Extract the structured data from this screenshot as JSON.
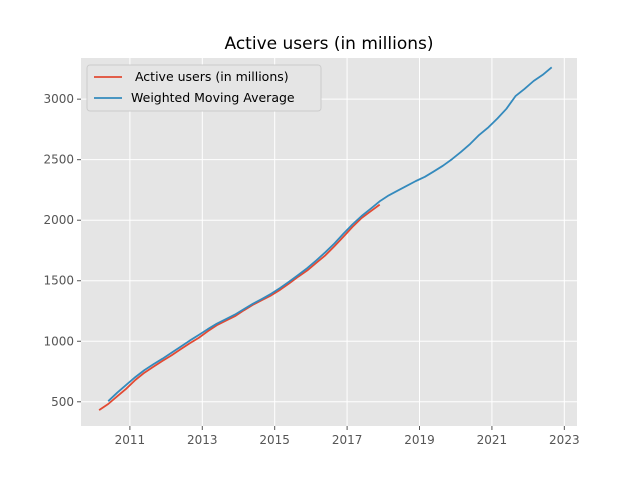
{
  "chart_data": {
    "type": "line",
    "title": "Active users (in millions)",
    "xlabel": "",
    "ylabel": "",
    "xlim": [
      2009.65,
      2023.35
    ],
    "ylim": [
      300,
      3340
    ],
    "xticks": [
      2011,
      2013,
      2015,
      2017,
      2019,
      2021,
      2023
    ],
    "yticks": [
      500,
      1000,
      1500,
      2000,
      2500,
      3000
    ],
    "grid": true,
    "legend": "upper-left",
    "series": [
      {
        "name": " Active users (in millions)",
        "color": "#E24A33",
        "x": [
          2010.15,
          2010.4,
          2010.65,
          2010.9,
          2011.15,
          2011.4,
          2011.65,
          2011.9,
          2012.15,
          2012.4,
          2012.65,
          2012.9,
          2013.15,
          2013.4,
          2013.65,
          2013.9,
          2014.15,
          2014.4,
          2014.65,
          2014.9,
          2015.15,
          2015.4,
          2015.65,
          2015.9,
          2016.15,
          2016.4,
          2016.65,
          2016.9,
          2017.15,
          2017.4,
          2017.65,
          2017.9
        ],
        "y": [
          431,
          482,
          545,
          608,
          680,
          740,
          790,
          838,
          883,
          934,
          982,
          1028,
          1082,
          1133,
          1170,
          1207,
          1256,
          1302,
          1340,
          1379,
          1425,
          1478,
          1533,
          1585,
          1648,
          1710,
          1785,
          1865,
          1945,
          2018,
          2074,
          2129
        ]
      },
      {
        "name": "Weighted Moving Average",
        "color": "#348ABD",
        "x": [
          2010.4,
          2010.65,
          2010.9,
          2011.15,
          2011.4,
          2011.65,
          2011.9,
          2012.15,
          2012.4,
          2012.65,
          2012.9,
          2013.15,
          2013.4,
          2013.65,
          2013.9,
          2014.15,
          2014.4,
          2014.65,
          2014.9,
          2015.15,
          2015.4,
          2015.65,
          2015.9,
          2016.15,
          2016.4,
          2016.65,
          2016.9,
          2017.15,
          2017.4,
          2017.65,
          2017.9,
          2018.15,
          2018.4,
          2018.65,
          2018.9,
          2019.15,
          2019.4,
          2019.65,
          2019.9,
          2020.15,
          2020.4,
          2020.65,
          2020.9,
          2021.15,
          2021.4,
          2021.65,
          2021.9,
          2022.15,
          2022.4,
          2022.65
        ],
        "y": [
          505,
          575,
          640,
          704,
          762,
          810,
          856,
          905,
          955,
          1005,
          1052,
          1100,
          1145,
          1182,
          1220,
          1266,
          1310,
          1350,
          1392,
          1440,
          1493,
          1547,
          1604,
          1668,
          1736,
          1808,
          1889,
          1965,
          2035,
          2094,
          2156,
          2205,
          2245,
          2284,
          2324,
          2359,
          2404,
          2450,
          2505,
          2565,
          2630,
          2705,
          2767,
          2840,
          2920,
          3025,
          3085,
          3150,
          3200,
          3263
        ]
      }
    ]
  }
}
